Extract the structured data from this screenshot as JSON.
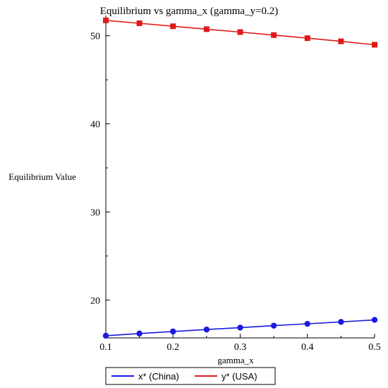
{
  "chart_data": {
    "type": "line",
    "title": "Equilibrium vs gamma_x (gamma_y=0.2)",
    "xlabel": "gamma_x",
    "ylabel": "Equilibrium Value",
    "x": [
      0.1,
      0.15,
      0.2,
      0.25,
      0.3,
      0.35,
      0.4,
      0.45,
      0.5
    ],
    "xlim": [
      0.1,
      0.5
    ],
    "ylim": [
      15.7,
      52.3
    ],
    "x_ticks": [
      0.1,
      0.2,
      0.3,
      0.4,
      0.5
    ],
    "x_tick_labels": [
      "0.1",
      "0.2",
      "0.3",
      "0.4",
      "0.5"
    ],
    "y_ticks": [
      20,
      30,
      40,
      50
    ],
    "y_tick_labels": [
      "20",
      "30",
      "40",
      "50"
    ],
    "grid": false,
    "legend_position": "bottom",
    "series": [
      {
        "name": "x* (China)",
        "color": "#1a1ae0",
        "marker": "circle",
        "values": [
          15.95,
          16.2,
          16.43,
          16.65,
          16.87,
          17.09,
          17.3,
          17.52,
          17.75
        ]
      },
      {
        "name": "y* (USA)",
        "color": "#e01a1a",
        "marker": "square",
        "values": [
          51.75,
          51.42,
          51.08,
          50.75,
          50.42,
          50.08,
          49.73,
          49.37,
          48.98
        ]
      }
    ]
  }
}
